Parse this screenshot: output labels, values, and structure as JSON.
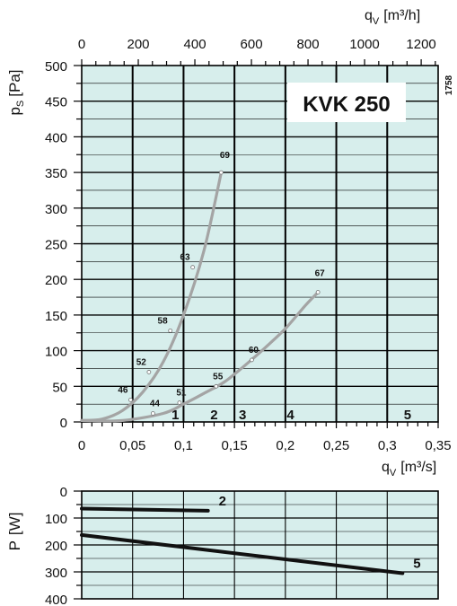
{
  "chart_data": [
    {
      "type": "line",
      "title": "KVK  250",
      "side_code": "1758",
      "xlabel": "q",
      "xlabel_sub": "V",
      "xlabel_unit": "[m³/s]",
      "x2label": "q",
      "x2label_sub": "V",
      "x2label_unit": "[m³/h]",
      "ylabel": "p",
      "ylabel_sub": "S",
      "ylabel_unit": "[Pa]",
      "xlim": [
        0,
        0.35
      ],
      "ylim": [
        0,
        500
      ],
      "x2lim": [
        0,
        1260
      ],
      "x_ticks": [
        {
          "value": 0,
          "label": "0"
        },
        {
          "value": 0.05,
          "label": "0,05"
        },
        {
          "value": 0.1,
          "label": "0,1"
        },
        {
          "value": 0.15,
          "label": "0,15"
        },
        {
          "value": 0.2,
          "label": "0,2"
        },
        {
          "value": 0.25,
          "label": "0,25"
        },
        {
          "value": 0.3,
          "label": "0,3"
        },
        {
          "value": 0.35,
          "label": "0,35"
        }
      ],
      "x2_ticks": [
        {
          "value": 0,
          "label": "0"
        },
        {
          "value": 200,
          "label": "200"
        },
        {
          "value": 400,
          "label": "400"
        },
        {
          "value": 600,
          "label": "600"
        },
        {
          "value": 800,
          "label": "800"
        },
        {
          "value": 1000,
          "label": "1000"
        },
        {
          "value": 1200,
          "label": "1200"
        }
      ],
      "y_ticks": [
        {
          "value": 0,
          "label": "0"
        },
        {
          "value": 50,
          "label": "50"
        },
        {
          "value": 100,
          "label": "100"
        },
        {
          "value": 150,
          "label": "150"
        },
        {
          "value": 200,
          "label": "200"
        },
        {
          "value": 250,
          "label": "250"
        },
        {
          "value": 300,
          "label": "300"
        },
        {
          "value": 350,
          "label": "350"
        },
        {
          "value": 400,
          "label": "400"
        },
        {
          "value": 450,
          "label": "450"
        },
        {
          "value": 500,
          "label": "500"
        }
      ],
      "grid": true,
      "background_color": "#d7eeec",
      "curve_color": "#a4a4a4",
      "series": [
        {
          "points": [
            [
              0.0,
              2
            ],
            [
              0.02,
              4
            ],
            [
              0.04,
              16
            ],
            [
              0.06,
              42
            ],
            [
              0.08,
              84
            ],
            [
              0.1,
              150
            ],
            [
              0.12,
              240
            ],
            [
              0.137,
              350
            ]
          ],
          "markers": [
            {
              "x": 0.048,
              "y": 31,
              "label": "46"
            },
            {
              "x": 0.066,
              "y": 70,
              "label": "52"
            },
            {
              "x": 0.087,
              "y": 128,
              "label": "58"
            },
            {
              "x": 0.109,
              "y": 217,
              "label": "63"
            },
            {
              "x": 0.137,
              "y": 350,
              "label": "69"
            }
          ]
        },
        {
          "points": [
            [
              0.0,
              2
            ],
            [
              0.04,
              2
            ],
            [
              0.08,
              12
            ],
            [
              0.1,
              25
            ],
            [
              0.12,
              40
            ],
            [
              0.14,
              56
            ],
            [
              0.16,
              79
            ],
            [
              0.18,
              104
            ],
            [
              0.2,
              131
            ],
            [
              0.22,
              164
            ],
            [
              0.232,
              182
            ]
          ],
          "markers": [
            {
              "x": 0.07,
              "y": 12,
              "label": "44"
            },
            {
              "x": 0.096,
              "y": 27,
              "label": "51"
            },
            {
              "x": 0.132,
              "y": 50,
              "label": "55"
            },
            {
              "x": 0.167,
              "y": 87,
              "label": "60"
            },
            {
              "x": 0.232,
              "y": 182,
              "label": "67"
            }
          ]
        }
      ],
      "zone_labels": [
        {
          "x": 0.092,
          "label": "1"
        },
        {
          "x": 0.13,
          "label": "2"
        },
        {
          "x": 0.158,
          "label": "3"
        },
        {
          "x": 0.205,
          "label": "4"
        },
        {
          "x": 0.32,
          "label": "5"
        }
      ]
    },
    {
      "type": "line",
      "ylabel": "P",
      "ylabel_unit": "[W]",
      "xlim": [
        0,
        0.35
      ],
      "ylim": [
        0,
        400
      ],
      "y_inverted": true,
      "y_ticks": [
        {
          "value": 0,
          "label": "0"
        },
        {
          "value": 100,
          "label": "100"
        },
        {
          "value": 200,
          "label": "200"
        },
        {
          "value": 300,
          "label": "300"
        },
        {
          "value": 400,
          "label": "400"
        }
      ],
      "grid": true,
      "background_color": "#d7eeec",
      "curve_color": "#111111",
      "series": [
        {
          "name": "2",
          "points": [
            [
              0.0,
              65
            ],
            [
              0.124,
              73
            ]
          ]
        },
        {
          "name": "5",
          "points": [
            [
              0.0,
              163
            ],
            [
              0.315,
              305
            ]
          ]
        }
      ]
    }
  ]
}
